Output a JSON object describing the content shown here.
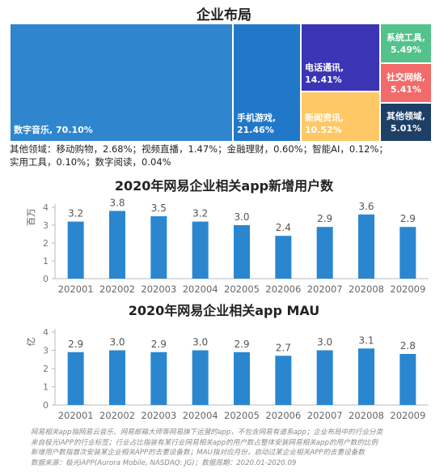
{
  "treemap": {
    "title": "企业布局",
    "tiles": [
      {
        "label": "数字音乐",
        "value": "70.10%",
        "color": "#2f86cf"
      },
      {
        "label": "手机游戏",
        "value": "21.46%",
        "color": "#2177c8"
      },
      {
        "label": "电话通讯",
        "value": "14.41%",
        "color": "#3b35b5"
      },
      {
        "label": "新闻资讯",
        "value": "10.52%",
        "color": "#fdc865"
      },
      {
        "label": "系统工具",
        "value": "5.49%",
        "color": "#53c28b"
      },
      {
        "label": "社交网络",
        "value": "5.41%",
        "color": "#f36a6a"
      },
      {
        "label": "其他领域",
        "value": "5.01%",
        "color": "#1e3f66"
      }
    ],
    "other_note_line1": "其他领域：移动购物，2.68%；视频直播，1.47%；金融理财，0.60%；智能AI，0.12%；",
    "other_note_line2": "实用工具，0.10%；数字阅读，0.04%"
  },
  "chart_data": [
    {
      "type": "bar",
      "title": "2020年网易企业相关app新增用户数",
      "ylabel": "百万",
      "ylim": [
        0,
        4
      ],
      "yticks": [
        "0",
        "1",
        "2",
        "3",
        "4"
      ],
      "categories": [
        "202001",
        "202002",
        "202003",
        "202004",
        "202005",
        "202006",
        "202007",
        "202008",
        "202009"
      ],
      "values": [
        3.2,
        3.8,
        3.5,
        3.2,
        3.0,
        2.4,
        2.9,
        3.6,
        2.9
      ],
      "value_labels": [
        "3.2",
        "3.8",
        "3.5",
        "3.2",
        "3.0",
        "2.4",
        "2.9",
        "3.6",
        "2.9"
      ],
      "color": "#2a87cf"
    },
    {
      "type": "bar",
      "title": "2020年网易企业相关app MAU",
      "ylabel": "亿",
      "ylim": [
        0,
        4
      ],
      "yticks": [
        "0",
        "1",
        "2",
        "3",
        "4"
      ],
      "categories": [
        "202001",
        "202002",
        "202003",
        "202004",
        "202005",
        "202006",
        "202007",
        "202008",
        "202009"
      ],
      "values": [
        2.9,
        3.0,
        2.9,
        3.0,
        2.9,
        2.7,
        3.0,
        3.1,
        2.8
      ],
      "value_labels": [
        "2.9",
        "3.0",
        "2.9",
        "3.0",
        "2.9",
        "2.7",
        "3.0",
        "3.1",
        "2.8"
      ],
      "color": "#2a87cf"
    }
  ],
  "footnote": {
    "line1": "网易相关app指网易云音乐、网易邮箱大师等网易旗下运营的app，不包含网易有道系app；企业布局中的行业分类",
    "line2": "来自极光iAPP的行业标签；行业占比指装有某行业网易相关app的用户数占整体安装网易相关app的用户数的比例",
    "line3": "新增用户数指首次安装某企业相关APP的去重设备数；MAU指对应月份，启动过某企业相关APP的去重设备数",
    "line4": "数据来源：极光iAPP(Aurora Mobile, NASDAQ: JG)；数据周期：2020.01-2020.09"
  }
}
